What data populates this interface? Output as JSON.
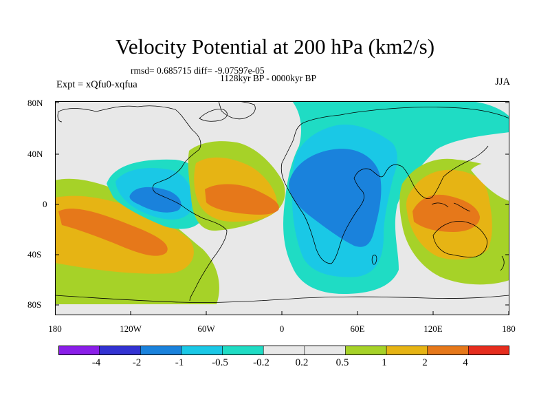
{
  "title": "Velocity Potential at 200 hPa (km2/s)",
  "stats": "rmsd= 0.685715 diff= -9.07597e-05",
  "period": "1128kyr BP - 0000kyr BP",
  "expt": "Expt = xQfu0-xqfua",
  "season": "JJA",
  "lat_labels": [
    "80N",
    "40N",
    "0",
    "40S",
    "80S"
  ],
  "lon_labels": [
    "180",
    "120W",
    "60W",
    "0",
    "60E",
    "120E",
    "180"
  ],
  "colorbar": {
    "labels": [
      "-4",
      "-2",
      "-1",
      "-0.5",
      "-0.2",
      "0.2",
      "0.5",
      "1",
      "2",
      "4"
    ],
    "colors": [
      "#8a1ee8",
      "#3232d2",
      "#1a82dc",
      "#1ac8e6",
      "#1fdcc4",
      "#e8e8e8",
      "#a6d228",
      "#e6b414",
      "#e6781a",
      "#e62d1e"
    ]
  }
}
